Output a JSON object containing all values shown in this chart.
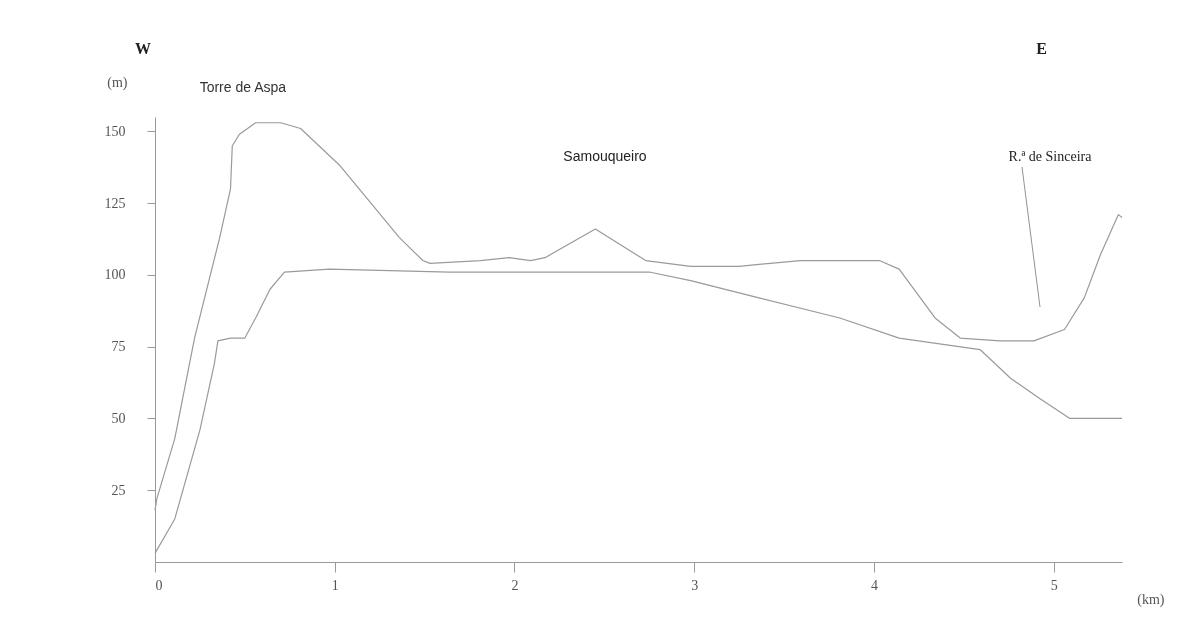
{
  "chart_data": {
    "type": "line",
    "xlabel": "(km)",
    "ylabel": "(m)",
    "annotations": [
      "W",
      "E",
      {
        "text": "Torre de Aspa",
        "x": 0.6,
        "y": 153
      },
      "Samouqueiro",
      "R.ª de Sinceira"
    ],
    "series": [
      {
        "color": "#9a9a9a",
        "x": [
          0,
          0.01,
          0.11,
          0.22,
          0.36,
          0.42,
          0.43,
          0.47,
          0.56,
          0.7,
          0.81,
          1.03,
          1.36,
          1.49,
          1.53,
          1.81,
          1.97,
          2.09,
          2.17,
          2.45,
          2.73,
          2.98,
          3.25,
          3.59,
          4.03,
          4.14,
          4.34,
          4.48,
          4.7,
          4.89,
          5.06,
          5.17,
          5.26,
          5.36,
          5.38
        ],
        "values": [
          18,
          22,
          43,
          78,
          113,
          130,
          145,
          149,
          153,
          153,
          151,
          138,
          113,
          105,
          104,
          105,
          106,
          105,
          106,
          116,
          105,
          103,
          103,
          105,
          105,
          102,
          85,
          78,
          77,
          77,
          81,
          92,
          107,
          121,
          120
        ]
      },
      {
        "color": "#9a9a9a",
        "x": [
          0,
          0.11,
          0.25,
          0.33,
          0.35,
          0.42,
          0.5,
          0.56,
          0.64,
          0.72,
          0.97,
          1.64,
          2.03,
          2.47,
          2.75,
          2.98,
          3.36,
          3.81,
          4.14,
          4.59,
          4.76,
          4.92,
          5.09,
          5.38
        ],
        "values": [
          3,
          15,
          46,
          69,
          77,
          78,
          78,
          85,
          95,
          101,
          102,
          101,
          101,
          101,
          101,
          98,
          92,
          85,
          78,
          74,
          64,
          57,
          50,
          50
        ]
      }
    ],
    "xlim": [
      0,
      5.38
    ],
    "xticks": [
      0,
      1,
      2,
      3,
      4,
      5
    ],
    "ylim": [
      0,
      155
    ],
    "yticks": [
      25,
      50,
      75,
      100,
      125,
      150
    ],
    "grid": false,
    "legend": false,
    "marker": "none",
    "line_style": "solid"
  }
}
